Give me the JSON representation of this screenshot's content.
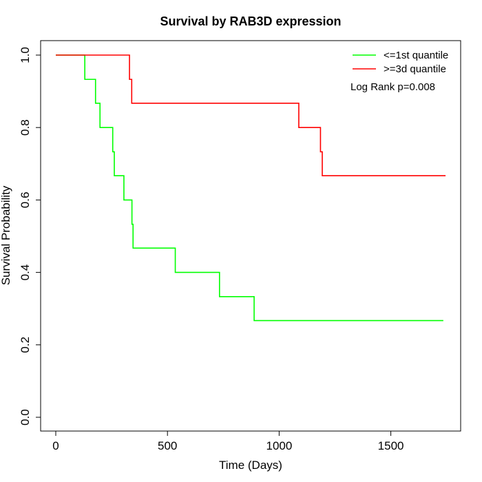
{
  "chart_data": {
    "type": "line",
    "title": "Survival by RAB3D expression",
    "xlabel": "Time (Days)",
    "ylabel": "Survival Probability",
    "xlim": [
      0,
      1750
    ],
    "ylim": [
      0,
      1
    ],
    "x_ticks": [
      0,
      500,
      1000,
      1500
    ],
    "y_ticks": [
      0.0,
      0.2,
      0.4,
      0.6,
      0.8,
      1.0
    ],
    "x_tick_labels": [
      "0",
      "500",
      "1000",
      "1500"
    ],
    "y_tick_labels": [
      "0.0",
      "0.2",
      "0.4",
      "0.6",
      "0.8",
      "1.0"
    ],
    "grid": false,
    "legend_position": "top-right",
    "annotation": "Log Rank p=0.008",
    "series": [
      {
        "name": "<=1st quantile",
        "color": "#00ff00",
        "step": true,
        "x": [
          0,
          130,
          178,
          198,
          255,
          262,
          305,
          341,
          346,
          535,
          733,
          888,
          1735
        ],
        "y": [
          1.0,
          0.933,
          0.867,
          0.8,
          0.733,
          0.667,
          0.6,
          0.533,
          0.467,
          0.4,
          0.333,
          0.267,
          0.267
        ]
      },
      {
        "name": ">=3d quantile",
        "color": "#ff0000",
        "step": true,
        "x": [
          0,
          330,
          340,
          1088,
          1185,
          1193,
          1745
        ],
        "y": [
          1.0,
          0.933,
          0.867,
          0.8,
          0.733,
          0.667,
          0.667
        ]
      }
    ]
  }
}
